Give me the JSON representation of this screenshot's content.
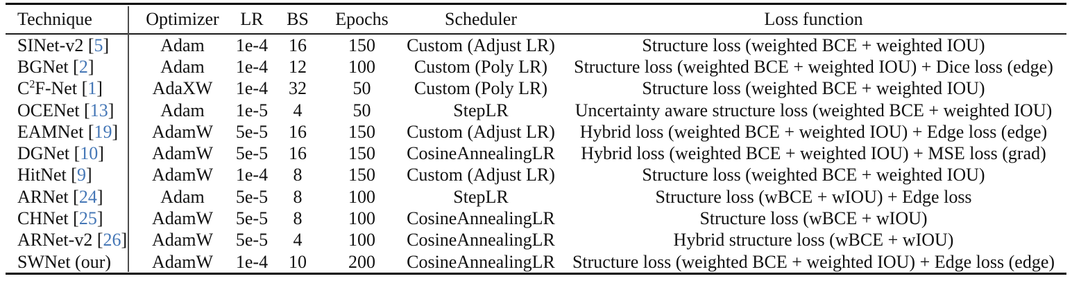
{
  "table": {
    "columns": [
      "Technique",
      "Optimizer",
      "LR",
      "BS",
      "Epochs",
      "Scheduler",
      "Loss function"
    ],
    "cite_color": "#4577b6",
    "rows": [
      {
        "technique_pre": "SINet-v2",
        "technique_sup": "",
        "technique_post": "",
        "cite": "5",
        "optimizer": "Adam",
        "lr": "1e-4",
        "bs": "16",
        "epochs": "150",
        "scheduler": "Custom (Adjust LR)",
        "loss": "Structure loss (weighted BCE + weighted IOU)"
      },
      {
        "technique_pre": "BGNet",
        "technique_sup": "",
        "technique_post": "",
        "cite": "2",
        "optimizer": "Adam",
        "lr": "1e-4",
        "bs": "12",
        "epochs": "100",
        "scheduler": "Custom (Poly LR)",
        "loss": "Structure loss (weighted BCE + weighted IOU) + Dice loss (edge)"
      },
      {
        "technique_pre": "C",
        "technique_sup": "2",
        "technique_post": "F-Net",
        "cite": "1",
        "optimizer": "AdaXW",
        "lr": "1e-4",
        "bs": "32",
        "epochs": "50",
        "scheduler": "Custom (Poly LR)",
        "loss": "Structure loss (weighted BCE + weighted IOU)"
      },
      {
        "technique_pre": "OCENet",
        "technique_sup": "",
        "technique_post": "",
        "cite": "13",
        "optimizer": "Adam",
        "lr": "1e-5",
        "bs": "4",
        "epochs": "50",
        "scheduler": "StepLR",
        "loss": "Uncertainty aware structure loss (weighted BCE + weighted IOU)"
      },
      {
        "technique_pre": "EAMNet",
        "technique_sup": "",
        "technique_post": "",
        "cite": "19",
        "optimizer": "AdamW",
        "lr": "5e-5",
        "bs": "16",
        "epochs": "150",
        "scheduler": "Custom (Adjust LR)",
        "loss": "Hybrid loss (weighted BCE + weighted IOU) + Edge loss (edge)"
      },
      {
        "technique_pre": "DGNet",
        "technique_sup": "",
        "technique_post": "",
        "cite": "10",
        "optimizer": "AdamW",
        "lr": "5e-5",
        "bs": "16",
        "epochs": "150",
        "scheduler": "CosineAnnealingLR",
        "loss": "Hybrid loss (weighted BCE + weighted IOU) + MSE loss (grad)"
      },
      {
        "technique_pre": "HitNet",
        "technique_sup": "",
        "technique_post": "",
        "cite": "9",
        "optimizer": "AdamW",
        "lr": "1e-4",
        "bs": "8",
        "epochs": "150",
        "scheduler": "Custom (Adjust LR)",
        "loss": "Structure loss (weighted BCE + weighted IOU)"
      },
      {
        "technique_pre": "ARNet",
        "technique_sup": "",
        "technique_post": "",
        "cite": "24",
        "optimizer": "Adam",
        "lr": "5e-5",
        "bs": "8",
        "epochs": "100",
        "scheduler": "StepLR",
        "loss": "Structure loss (wBCE + wIOU) + Edge loss"
      },
      {
        "technique_pre": "CHNet",
        "technique_sup": "",
        "technique_post": "",
        "cite": "25",
        "optimizer": "AdamW",
        "lr": "5e-5",
        "bs": "8",
        "epochs": "100",
        "scheduler": "CosineAnnealingLR",
        "loss": "Structure loss (wBCE + wIOU)"
      },
      {
        "technique_pre": "ARNet-v2",
        "technique_sup": "",
        "technique_post": "",
        "cite": "26",
        "optimizer": "AdamW",
        "lr": "5e-5",
        "bs": "4",
        "epochs": "100",
        "scheduler": "CosineAnnealingLR",
        "loss": "Hybrid structure loss (wBCE + wIOU)"
      },
      {
        "technique_pre": "SWNet (our)",
        "technique_sup": "",
        "technique_post": "",
        "cite": "",
        "optimizer": "AdamW",
        "lr": "1e-4",
        "bs": "10",
        "epochs": "200",
        "scheduler": "CosineAnnealingLR",
        "loss": "Structure loss (weighted BCE + weighted IOU) + Edge loss (edge)"
      }
    ]
  }
}
